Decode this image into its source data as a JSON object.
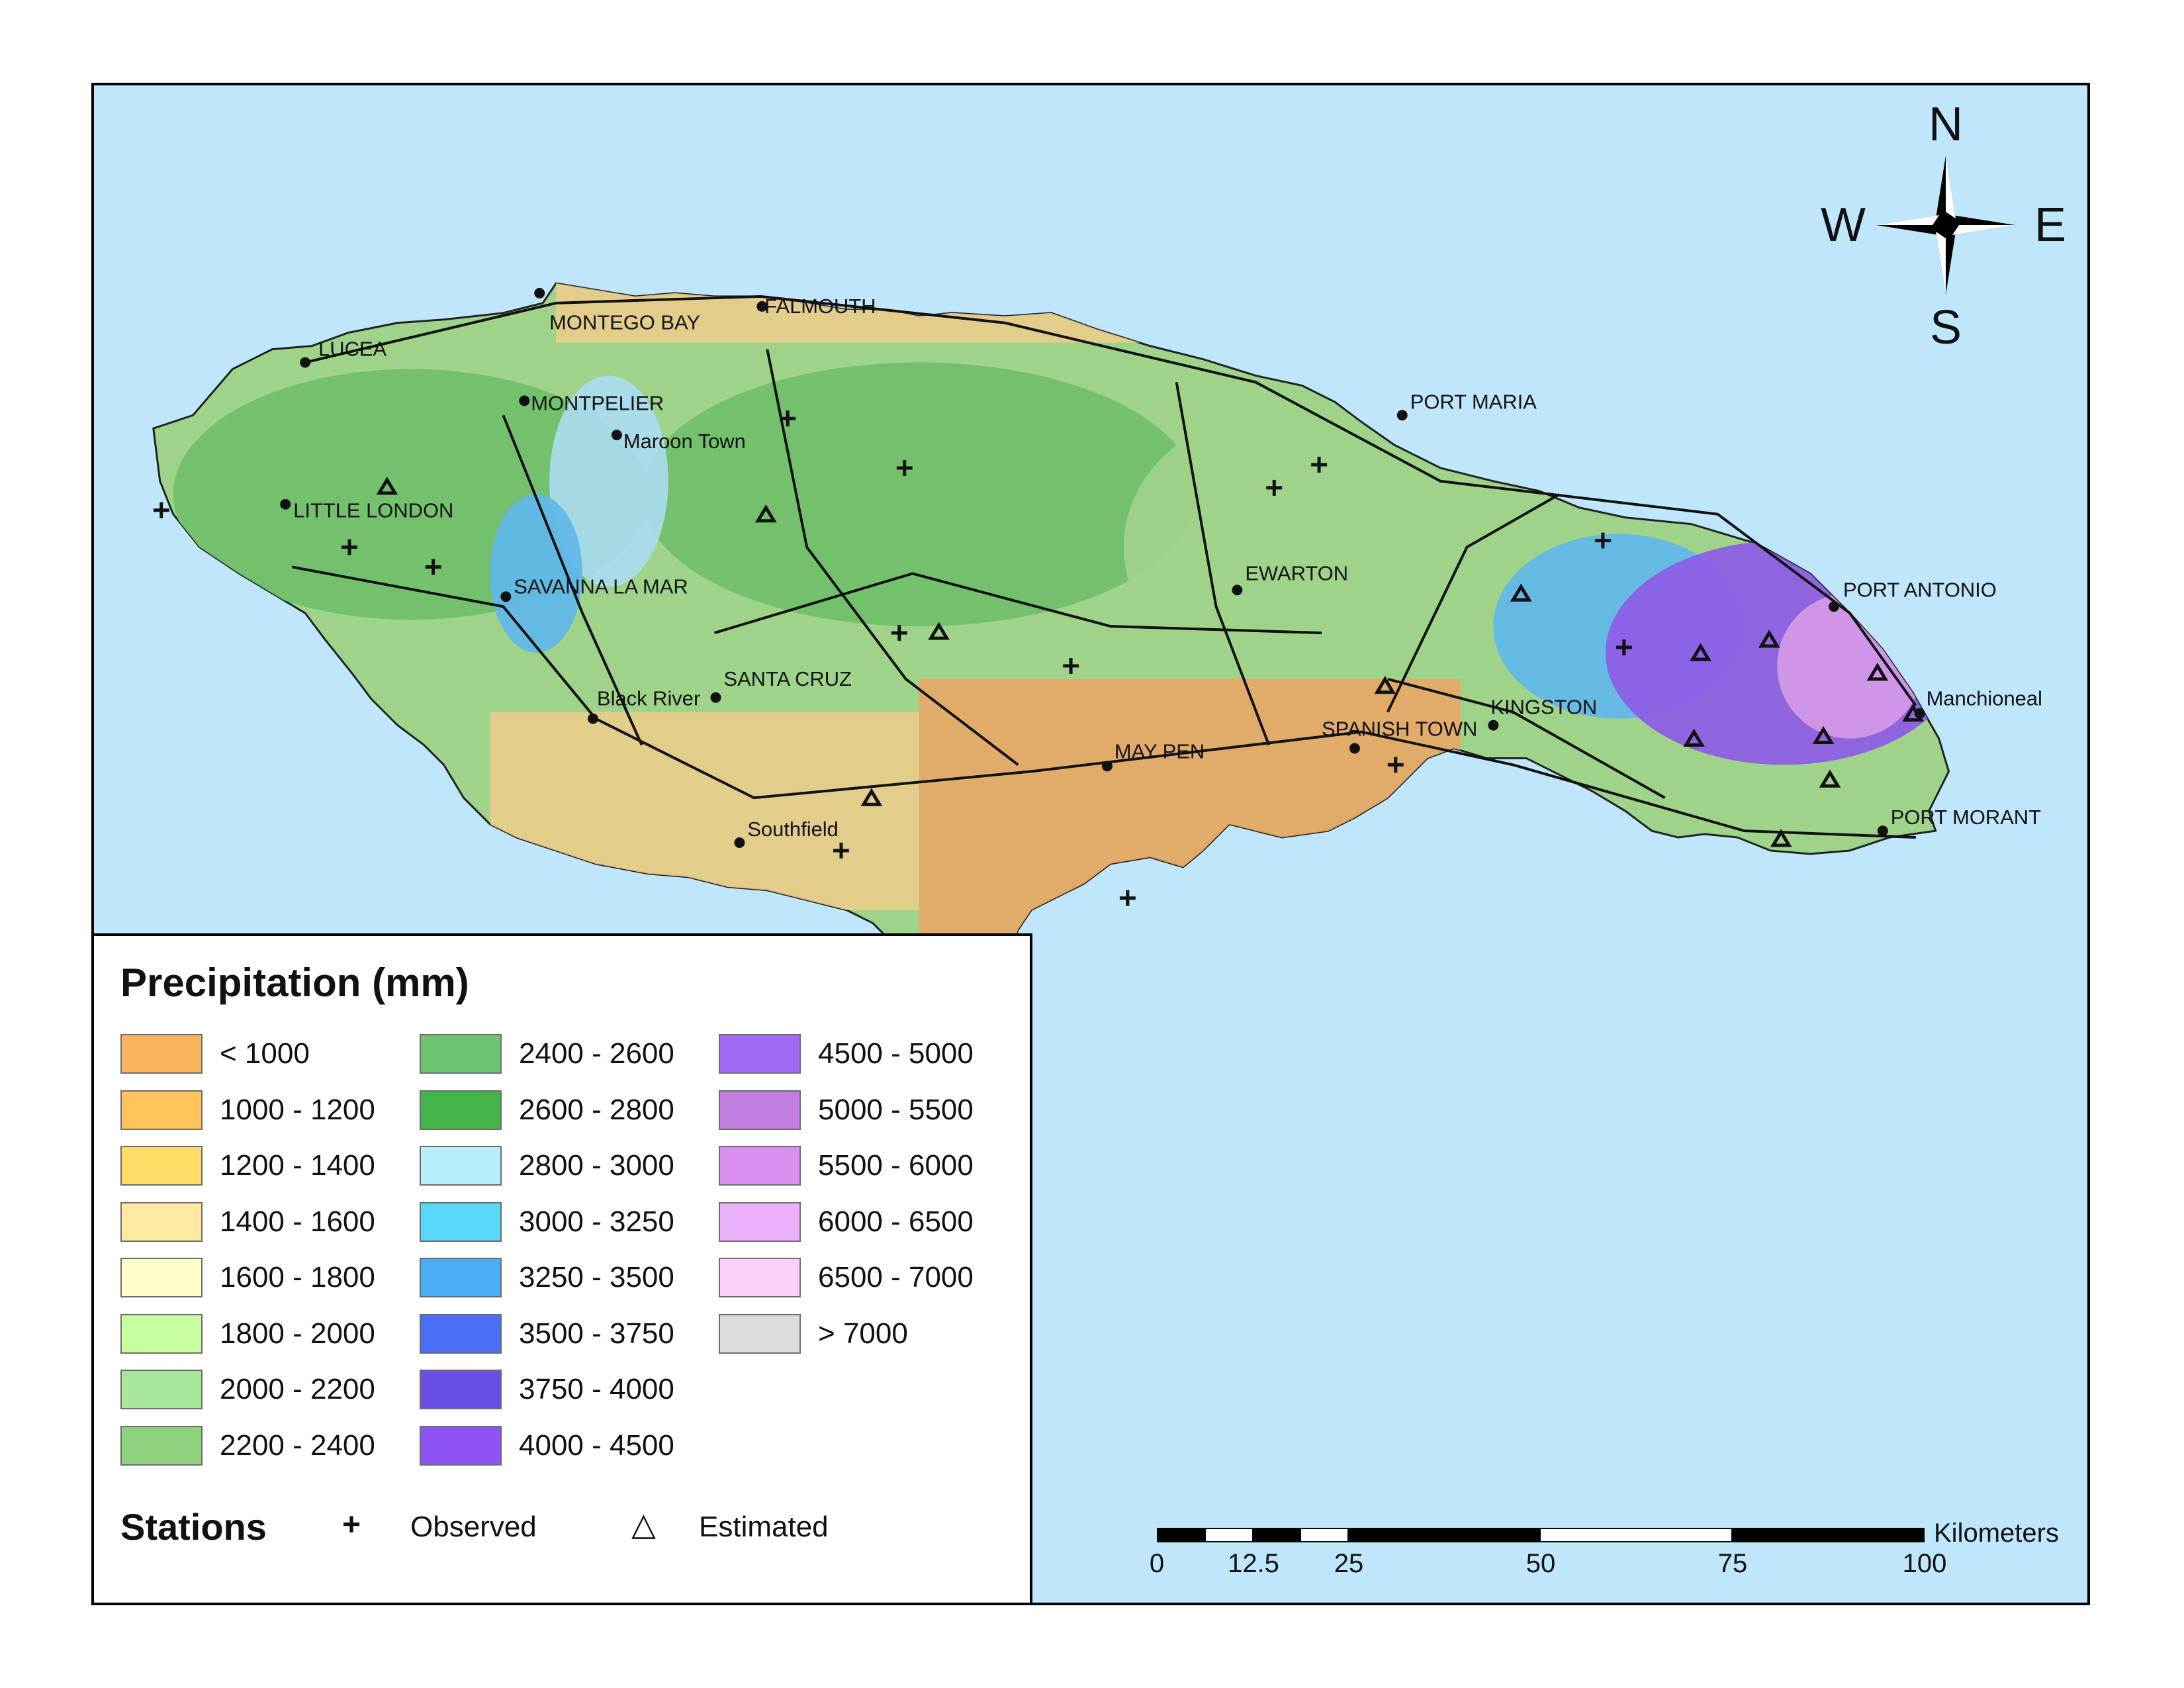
{
  "map": {
    "places": {
      "montego_bay": "MONTEGO BAY",
      "falmouth": "FALMOUTH",
      "lucea": "LUCEA",
      "montpelier": "MONTPELIER",
      "maroon_town": "Maroon Town",
      "little_london": "LITTLE LONDON",
      "savanna_la_mar": "SAVANNA LA MAR",
      "black_river": "Black River",
      "santa_cruz": "SANTA CRUZ",
      "southfield": "Southfield",
      "may_pen": "MAY PEN",
      "spanish_town": "SPANISH TOWN",
      "kingston": "KINGSTON",
      "ewarton": "EWARTON",
      "port_maria": "PORT MARIA",
      "port_antonio": "PORT ANTONIO",
      "manchioneal": "Manchioneal",
      "port_morant": "PORT MORANT"
    },
    "colors": {
      "sea": "#bfe6fb",
      "lowland_dry": "#e6a866",
      "plains": "#e8cc8a",
      "midland": "#9fd38a",
      "upland": "#6fbf6a",
      "wet_hills": "#a9dcf0",
      "wetter": "#5fb7ea",
      "blue_mountains": "#8d5be6",
      "peak": "#d59ae8"
    }
  },
  "compass": {
    "n": "N",
    "s": "S",
    "e": "E",
    "w": "W"
  },
  "legend": {
    "title": "Precipitation (mm)",
    "classes": [
      {
        "label": "< 1000",
        "color": "#f9b25e"
      },
      {
        "label": "1000 - 1200",
        "color": "#ffc55a"
      },
      {
        "label": "1200 - 1400",
        "color": "#ffdd66"
      },
      {
        "label": "1400 - 1600",
        "color": "#ffe9a0"
      },
      {
        "label": "1600 - 1800",
        "color": "#ffffc8"
      },
      {
        "label": "1800 - 2000",
        "color": "#c7ffa0"
      },
      {
        "label": "2000 - 2200",
        "color": "#a8e69a"
      },
      {
        "label": "2200 - 2400",
        "color": "#8fd37f"
      },
      {
        "label": "2400 - 2600",
        "color": "#6fc46f"
      },
      {
        "label": "2600 - 2800",
        "color": "#45b54a"
      },
      {
        "label": "2800 - 3000",
        "color": "#b6f0fa"
      },
      {
        "label": "3000 - 3250",
        "color": "#5ad8fb"
      },
      {
        "label": "3250 - 3500",
        "color": "#4aaef5"
      },
      {
        "label": "3500 - 3750",
        "color": "#4a6ef5"
      },
      {
        "label": "3750 - 4000",
        "color": "#6a4ee6"
      },
      {
        "label": "4000 - 4500",
        "color": "#8e52f5"
      },
      {
        "label": "4500 - 5000",
        "color": "#a06cf5"
      },
      {
        "label": "5000 - 5500",
        "color": "#c07ee0"
      },
      {
        "label": "5500 - 6000",
        "color": "#d98ef0"
      },
      {
        "label": "6000 - 6500",
        "color": "#eab0f9"
      },
      {
        "label": "6500 - 7000",
        "color": "#fcd0fb"
      },
      {
        "label": "> 7000",
        "color": "#dcdcdc"
      }
    ],
    "stations_title": "Stations",
    "observed_symbol": "+",
    "observed_label": "Observed",
    "estimated_symbol": "△",
    "estimated_label": "Estimated"
  },
  "scale": {
    "ticks": [
      "0",
      "12.5",
      "25",
      "50",
      "75",
      "100"
    ],
    "unit": "Kilometers"
  }
}
